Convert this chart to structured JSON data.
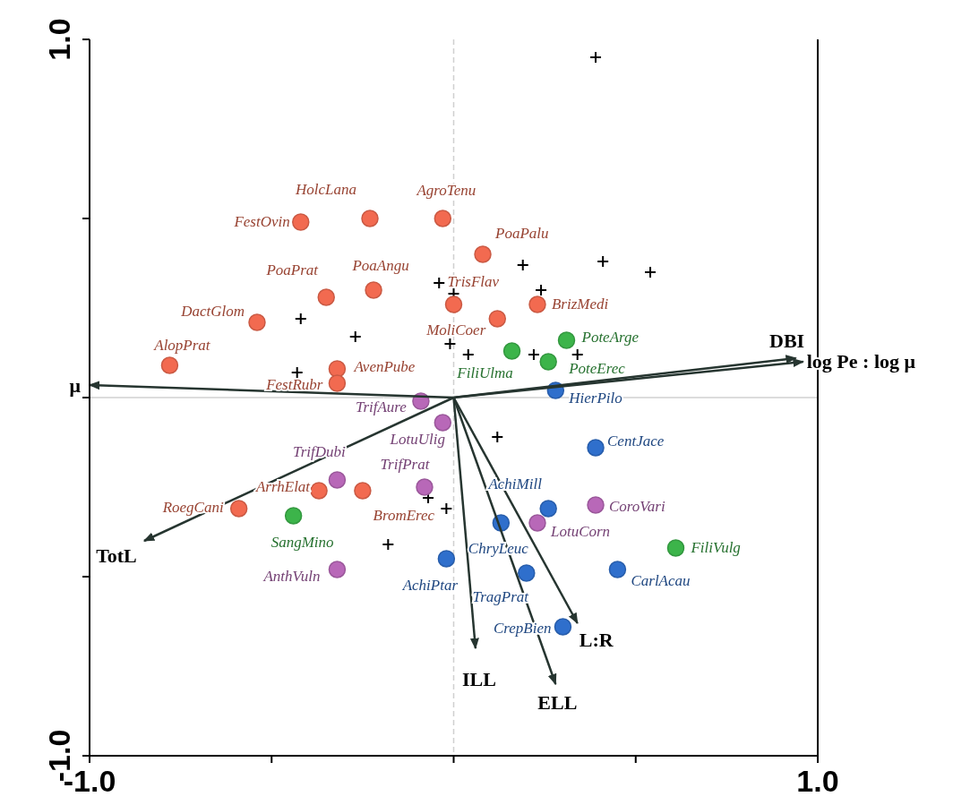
{
  "chart_data": {
    "type": "scatter",
    "xlim": [
      -1,
      1
    ],
    "ylim": [
      -1,
      1
    ],
    "xticks": [
      {
        "value": -1,
        "label": "-1.0"
      },
      {
        "value": -0.5,
        "label": null
      },
      {
        "value": 0,
        "label": null
      },
      {
        "value": 0.5,
        "label": null
      },
      {
        "value": 1,
        "label": "1.0"
      }
    ],
    "yticks": [
      {
        "value": -1,
        "label": "-1.0"
      },
      {
        "value": -0.5,
        "label": null
      },
      {
        "value": 0,
        "label": null
      },
      {
        "value": 0.5,
        "label": null
      },
      {
        "value": 1,
        "label": "1.0"
      }
    ],
    "ref_lines": [
      {
        "axis": "x",
        "value": 0,
        "color": "#d0d0d0",
        "line_style": "dashed"
      },
      {
        "axis": "y",
        "value": 0,
        "color": "#d0d0d0"
      }
    ],
    "series": [
      {
        "marker": "cross",
        "color": "#000000",
        "x": [
          0.39,
          0.19,
          0.41,
          0.54,
          0.24,
          -0.04,
          0.0,
          -0.42,
          -0.27,
          -0.01,
          0.04,
          0.22,
          0.34,
          -0.43,
          0.12,
          -0.07,
          -0.02,
          -0.18
        ],
        "values": [
          0.95,
          0.37,
          0.38,
          0.35,
          0.3,
          0.32,
          0.29,
          0.22,
          0.17,
          0.15,
          0.12,
          0.12,
          0.12,
          0.07,
          -0.11,
          -0.28,
          -0.31,
          -0.41
        ]
      },
      {
        "marker": "circle",
        "color": "#f26a50",
        "x": [
          -0.42,
          -0.23,
          -0.03,
          0.08,
          -0.35,
          -0.22,
          0.0,
          -0.54,
          0.12,
          0.23,
          -0.78,
          -0.32,
          -0.32,
          -0.37,
          -0.25,
          -0.59
        ],
        "values": [
          0.49,
          0.5,
          0.5,
          0.4,
          0.28,
          0.3,
          0.26,
          0.21,
          0.22,
          0.26,
          0.09,
          0.08,
          0.04,
          -0.26,
          -0.26,
          -0.31
        ],
        "value_labels": [
          "FestOvin",
          "HolcLana",
          "AgroTenu",
          "PoaPalu",
          "PoaPrat",
          "PoaAngu",
          "TrisFlav",
          "DactGlom",
          "MoliCoer",
          "BrizMedi",
          "AlopPrat",
          "AvenPube",
          "FestRubr",
          "ArrhElat",
          "BromErec",
          "RoegCani"
        ]
      },
      {
        "marker": "circle",
        "color": "#3cb44a",
        "x": [
          0.16,
          0.31,
          0.26,
          -0.44,
          0.61
        ],
        "values": [
          0.13,
          0.16,
          0.1,
          -0.33,
          -0.42
        ],
        "value_labels": [
          "FiliUlma",
          "PoteArge",
          "PoteErec",
          "SangMino",
          "FiliVulg"
        ]
      },
      {
        "marker": "circle",
        "color": "#b868b8",
        "x": [
          -0.09,
          -0.03,
          -0.32,
          -0.08,
          -0.32,
          0.39,
          0.23
        ],
        "values": [
          -0.01,
          -0.07,
          -0.23,
          -0.25,
          -0.48,
          -0.3,
          -0.35
        ],
        "value_labels": [
          "TrifAure",
          "LotuUlig",
          "TrifDubi",
          "TrifPrat",
          "AnthVuln",
          "CoroVari",
          "LotuCorn"
        ]
      },
      {
        "marker": "circle",
        "color": "#2f6fcc",
        "x": [
          0.28,
          0.39,
          0.26,
          0.13,
          -0.02,
          0.2,
          0.3,
          0.45
        ],
        "values": [
          0.02,
          -0.14,
          -0.31,
          -0.35,
          -0.45,
          -0.49,
          -0.64,
          -0.48
        ],
        "value_labels": [
          "HierPilo",
          "CentJace",
          "AchiMill",
          "ChryLeuc",
          "AchiPtar",
          "TragPrat",
          "CrepBien",
          "CarlAcau"
        ]
      },
      {
        "type": "line",
        "name": "DBI",
        "color": "#263530",
        "x": [
          0,
          0.94
        ],
        "values": [
          0,
          0.11
        ]
      },
      {
        "type": "line",
        "name": "log Pe : log μ",
        "color": "#263530",
        "x": [
          0,
          0.96
        ],
        "values": [
          0,
          0.1
        ]
      },
      {
        "type": "line",
        "name": "μ",
        "color": "#263530",
        "x": [
          0,
          -1.0
        ],
        "values": [
          0,
          0.035
        ]
      },
      {
        "type": "line",
        "name": "TotL",
        "color": "#263530",
        "x": [
          0,
          -0.85
        ],
        "values": [
          0,
          -0.4
        ]
      },
      {
        "type": "line",
        "name": "ILL",
        "color": "#263530",
        "x": [
          0,
          0.06
        ],
        "values": [
          0,
          -0.7
        ]
      },
      {
        "type": "line",
        "name": "ELL",
        "color": "#263530",
        "x": [
          0,
          0.28
        ],
        "values": [
          0,
          -0.8
        ]
      },
      {
        "type": "line",
        "name": "L:R",
        "color": "#263530",
        "x": [
          0,
          0.34
        ],
        "values": [
          0,
          -0.63
        ]
      }
    ]
  }
}
